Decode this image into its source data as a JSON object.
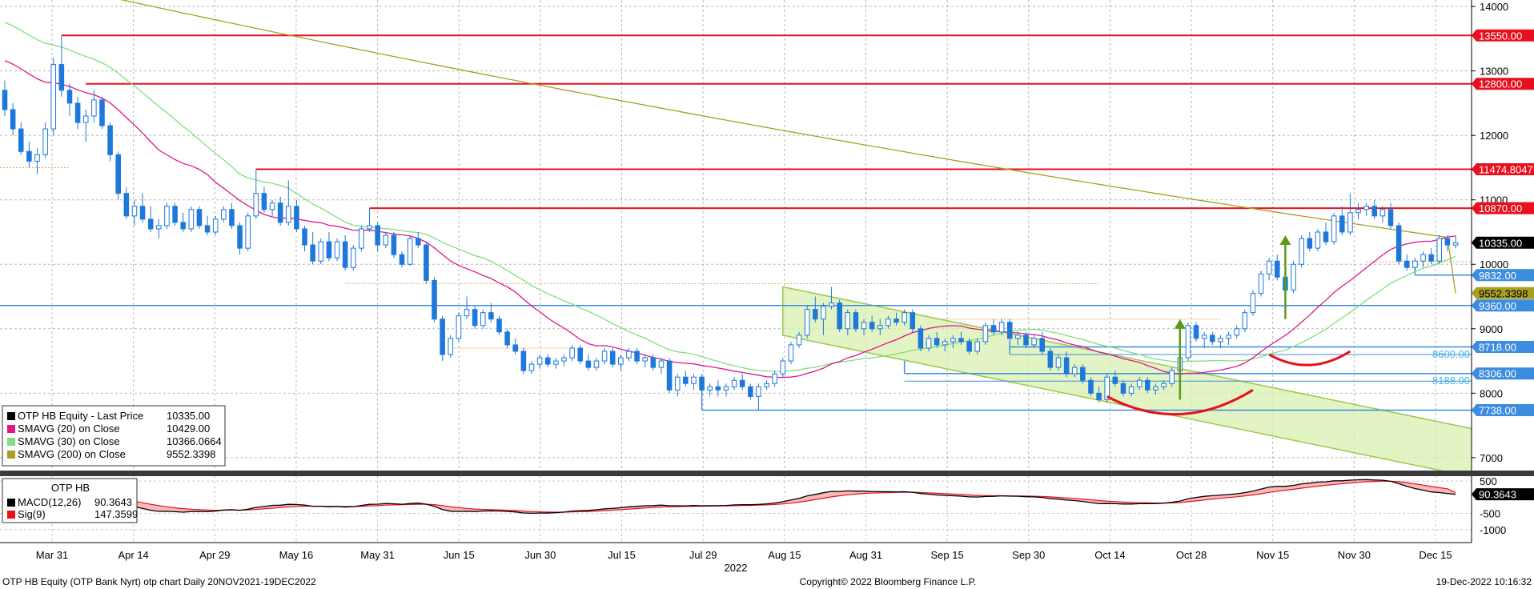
{
  "chart_data": [
    {
      "type": "candlestick",
      "ylim": [
        6800,
        14100
      ],
      "y_ticks": [
        7000,
        8000,
        9000,
        10000,
        11000,
        12000,
        13000,
        14000
      ],
      "x_ticks": [
        "Mar 31",
        "Apr 14",
        "Apr 29",
        "May 16",
        "May 31",
        "Jun 15",
        "Jun 30",
        "Jul 15",
        "Jul 29",
        "Aug 15",
        "Aug 31",
        "Sep 15",
        "Sep 30",
        "Oct 14",
        "Oct 28",
        "Nov 15",
        "Nov 30",
        "Dec 15"
      ],
      "year_label": "2022",
      "grid": true,
      "legend_position": "bottom-left",
      "legend": [
        {
          "label": "OTP HB Equity - Last Price",
          "value": "10335.00",
          "color": "#000000"
        },
        {
          "label": "SMAVG (20)  on Close",
          "value": "10429.00",
          "color": "#e0168c"
        },
        {
          "label": "SMAVG (30)  on Close",
          "value": "10366.0664",
          "color": "#7ee07e"
        },
        {
          "label": "SMAVG (200)  on Close",
          "value": "9552.3398",
          "color": "#a8a020"
        }
      ],
      "price_tags": [
        {
          "value": 13550,
          "label": "13550.00",
          "color": "#e8101e"
        },
        {
          "value": 12800,
          "label": "12800.00",
          "color": "#e8101e"
        },
        {
          "value": 11474.8047,
          "label": "11474.8047",
          "color": "#e8101e"
        },
        {
          "value": 10870,
          "label": "10870.00",
          "color": "#e8101e"
        },
        {
          "value": 10335,
          "label": "10335.00",
          "color": "#000000"
        },
        {
          "value": 9832,
          "label": "9832.00",
          "color": "#3c8ce0"
        },
        {
          "value": 9552.3398,
          "label": "9552.3398",
          "color": "#a8a020"
        },
        {
          "value": 9360,
          "label": "9360.00",
          "color": "#3c8ce0"
        },
        {
          "value": 8718,
          "label": "8718.00",
          "color": "#3c8ce0"
        },
        {
          "value": 8306,
          "label": "8306.00",
          "color": "#3c8ce0"
        },
        {
          "value": 7738,
          "label": "7738.00",
          "color": "#3c8ce0"
        }
      ],
      "inline_labels": [
        {
          "value": 8600,
          "label": "8600.00"
        },
        {
          "value": 8188,
          "label": "8188.00"
        }
      ],
      "ohlc": [
        [
          12700,
          12850,
          12300,
          12400
        ],
        [
          12400,
          12500,
          12000,
          12100
        ],
        [
          12100,
          12200,
          11700,
          11750
        ],
        [
          11750,
          11900,
          11500,
          11600
        ],
        [
          11600,
          11800,
          11400,
          11700
        ],
        [
          11700,
          12200,
          11650,
          12100
        ],
        [
          12100,
          13200,
          12000,
          13100
        ],
        [
          13100,
          13550,
          12600,
          12700
        ],
        [
          12700,
          12800,
          12300,
          12500
        ],
        [
          12500,
          12600,
          12100,
          12200
        ],
        [
          12200,
          12400,
          11900,
          12300
        ],
        [
          12300,
          12700,
          12200,
          12550
        ],
        [
          12550,
          12600,
          12100,
          12150
        ],
        [
          12150,
          12200,
          11600,
          11700
        ],
        [
          11700,
          11750,
          11000,
          11100
        ],
        [
          11100,
          11200,
          10700,
          10750
        ],
        [
          10750,
          11000,
          10600,
          10900
        ],
        [
          10900,
          11100,
          10650,
          10700
        ],
        [
          10700,
          10900,
          10500,
          10550
        ],
        [
          10550,
          10700,
          10400,
          10600
        ],
        [
          10600,
          10950,
          10550,
          10900
        ],
        [
          10900,
          10950,
          10600,
          10650
        ],
        [
          10650,
          10800,
          10500,
          10550
        ],
        [
          10550,
          10900,
          10500,
          10850
        ],
        [
          10850,
          10900,
          10550,
          10600
        ],
        [
          10600,
          10750,
          10450,
          10500
        ],
        [
          10500,
          10750,
          10450,
          10700
        ],
        [
          10700,
          10900,
          10650,
          10850
        ],
        [
          10850,
          10950,
          10550,
          10600
        ],
        [
          10600,
          10650,
          10150,
          10250
        ],
        [
          10250,
          10800,
          10200,
          10750
        ],
        [
          10750,
          11474,
          10700,
          11100
        ],
        [
          11100,
          11200,
          10800,
          10850
        ],
        [
          10850,
          11000,
          10750,
          10950
        ],
        [
          10950,
          11050,
          10600,
          10650
        ],
        [
          10650,
          11300,
          10600,
          10900
        ],
        [
          10900,
          11000,
          10500,
          10550
        ],
        [
          10550,
          10600,
          10200,
          10300
        ],
        [
          10300,
          10500,
          10000,
          10050
        ],
        [
          10050,
          10400,
          10000,
          10350
        ],
        [
          10350,
          10500,
          10050,
          10100
        ],
        [
          10100,
          10400,
          10050,
          10350
        ],
        [
          10350,
          10450,
          9900,
          9950
        ],
        [
          9950,
          10300,
          9900,
          10250
        ],
        [
          10250,
          10600,
          10200,
          10550
        ],
        [
          10550,
          10870,
          10500,
          10600
        ],
        [
          10600,
          10650,
          10200,
          10300
        ],
        [
          10300,
          10500,
          10250,
          10450
        ],
        [
          10450,
          10500,
          10100,
          10150
        ],
        [
          10150,
          10200,
          9950,
          10000
        ],
        [
          10000,
          10450,
          9980,
          10400
        ],
        [
          10400,
          10500,
          10250,
          10300
        ],
        [
          10300,
          10350,
          9700,
          9750
        ],
        [
          9750,
          9800,
          9100,
          9150
        ],
        [
          9150,
          9200,
          8500,
          8600
        ],
        [
          8600,
          8900,
          8550,
          8850
        ],
        [
          8850,
          9250,
          8800,
          9200
        ],
        [
          9200,
          9500,
          9150,
          9300
        ],
        [
          9300,
          9350,
          9000,
          9050
        ],
        [
          9050,
          9300,
          9000,
          9250
        ],
        [
          9250,
          9400,
          9100,
          9150
        ],
        [
          9150,
          9200,
          8900,
          8950
        ],
        [
          8950,
          9000,
          8700,
          8750
        ],
        [
          8750,
          8850,
          8600,
          8650
        ],
        [
          8650,
          8700,
          8300,
          8350
        ],
        [
          8350,
          8500,
          8300,
          8450
        ],
        [
          8450,
          8600,
          8380,
          8550
        ],
        [
          8550,
          8600,
          8400,
          8450
        ],
        [
          8450,
          8550,
          8380,
          8500
        ],
        [
          8500,
          8600,
          8420,
          8550
        ],
        [
          8550,
          8750,
          8500,
          8700
        ],
        [
          8700,
          8750,
          8450,
          8500
        ],
        [
          8500,
          8600,
          8350,
          8400
        ],
        [
          8400,
          8550,
          8350,
          8500
        ],
        [
          8500,
          8700,
          8450,
          8650
        ],
        [
          8650,
          8700,
          8400,
          8450
        ],
        [
          8450,
          8600,
          8350,
          8550
        ],
        [
          8550,
          8700,
          8500,
          8650
        ],
        [
          8650,
          8700,
          8450,
          8500
        ],
        [
          8500,
          8600,
          8400,
          8550
        ],
        [
          8550,
          8600,
          8350,
          8400
        ],
        [
          8400,
          8550,
          8300,
          8500
        ],
        [
          8500,
          8550,
          8000,
          8050
        ],
        [
          8050,
          8300,
          7950,
          8250
        ],
        [
          8250,
          8350,
          8100,
          8150
        ],
        [
          8150,
          8300,
          8050,
          8250
        ],
        [
          8250,
          8300,
          8000,
          8050
        ],
        [
          8050,
          8150,
          7950,
          8100
        ],
        [
          8100,
          8200,
          7950,
          8050
        ],
        [
          8050,
          8150,
          7950,
          8100
        ],
        [
          8100,
          8250,
          8050,
          8200
        ],
        [
          8200,
          8300,
          8050,
          8100
        ],
        [
          8100,
          8150,
          7900,
          7950
        ],
        [
          7950,
          8150,
          7738,
          8100
        ],
        [
          8100,
          8200,
          8050,
          8150
        ],
        [
          8150,
          8350,
          8100,
          8300
        ],
        [
          8300,
          8550,
          8250,
          8500
        ],
        [
          8500,
          8800,
          8450,
          8750
        ],
        [
          8750,
          8950,
          8700,
          8900
        ],
        [
          8900,
          9350,
          8850,
          9300
        ],
        [
          9300,
          9500,
          9100,
          9150
        ],
        [
          9150,
          9400,
          8900,
          9350
        ],
        [
          9350,
          9650,
          9300,
          9400
        ],
        [
          9400,
          9450,
          8950,
          9000
        ],
        [
          9000,
          9300,
          8900,
          9250
        ],
        [
          9250,
          9300,
          8950,
          9000
        ],
        [
          9000,
          9150,
          8900,
          9100
        ],
        [
          9100,
          9200,
          8950,
          9000
        ],
        [
          9000,
          9150,
          8900,
          9050
        ],
        [
          9050,
          9200,
          9000,
          9150
        ],
        [
          9150,
          9250,
          9050,
          9100
        ],
        [
          9100,
          9300,
          9050,
          9250
        ],
        [
          9250,
          9300,
          8950,
          9000
        ],
        [
          9000,
          9050,
          8650,
          8700
        ],
        [
          8700,
          8900,
          8650,
          8850
        ],
        [
          8850,
          8950,
          8700,
          8750
        ],
        [
          8750,
          8850,
          8650,
          8800
        ],
        [
          8800,
          8900,
          8700,
          8850
        ],
        [
          8850,
          8950,
          8750,
          8800
        ],
        [
          8800,
          8850,
          8600,
          8650
        ],
        [
          8650,
          8850,
          8600,
          8800
        ],
        [
          8800,
          9100,
          8750,
          9050
        ],
        [
          9050,
          9150,
          8900,
          8950
        ],
        [
          8950,
          9150,
          8900,
          9100
        ],
        [
          9100,
          9150,
          8800,
          8850
        ],
        [
          8850,
          8950,
          8750,
          8900
        ],
        [
          8900,
          8950,
          8700,
          8750
        ],
        [
          8750,
          8900,
          8700,
          8850
        ],
        [
          8850,
          8950,
          8600,
          8650
        ],
        [
          8650,
          8700,
          8350,
          8400
        ],
        [
          8400,
          8600,
          8350,
          8550
        ],
        [
          8550,
          8650,
          8250,
          8300
        ],
        [
          8300,
          8450,
          8250,
          8400
        ],
        [
          8400,
          8450,
          8150,
          8200
        ],
        [
          8200,
          8250,
          7950,
          8000
        ],
        [
          8000,
          8100,
          7850,
          7900
        ],
        [
          7900,
          8300,
          7850,
          8250
        ],
        [
          8250,
          8350,
          8100,
          8150
        ],
        [
          8150,
          8200,
          7950,
          8000
        ],
        [
          8000,
          8150,
          7950,
          8100
        ],
        [
          8100,
          8250,
          8050,
          8200
        ],
        [
          8200,
          8250,
          8000,
          8050
        ],
        [
          8050,
          8150,
          7980,
          8100
        ],
        [
          8100,
          8200,
          8050,
          8150
        ],
        [
          8150,
          8400,
          8100,
          8350
        ],
        [
          8350,
          8600,
          8300,
          8550
        ],
        [
          8550,
          9100,
          8500,
          9050
        ],
        [
          9050,
          9100,
          8800,
          8850
        ],
        [
          8850,
          8950,
          8700,
          8900
        ],
        [
          8900,
          8950,
          8750,
          8800
        ],
        [
          8800,
          8900,
          8700,
          8850
        ],
        [
          8850,
          8950,
          8750,
          8900
        ],
        [
          8900,
          9050,
          8850,
          9000
        ],
        [
          9000,
          9300,
          8950,
          9250
        ],
        [
          9250,
          9600,
          9200,
          9550
        ],
        [
          9550,
          9900,
          9500,
          9850
        ],
        [
          9850,
          10100,
          9750,
          10050
        ],
        [
          10050,
          10150,
          9750,
          9800
        ],
        [
          9800,
          9900,
          9550,
          9600
        ],
        [
          9600,
          10050,
          9550,
          10000
        ],
        [
          10000,
          10450,
          9950,
          10400
        ],
        [
          10400,
          10500,
          10200,
          10250
        ],
        [
          10250,
          10550,
          10200,
          10500
        ],
        [
          10500,
          10650,
          10300,
          10350
        ],
        [
          10350,
          10800,
          10300,
          10750
        ],
        [
          10750,
          10900,
          10450,
          10500
        ],
        [
          10500,
          11100,
          10450,
          10800
        ],
        [
          10800,
          10950,
          10700,
          10850
        ],
        [
          10850,
          10950,
          10750,
          10900
        ],
        [
          10900,
          11000,
          10700,
          10750
        ],
        [
          10750,
          10900,
          10650,
          10850
        ],
        [
          10850,
          10950,
          10550,
          10600
        ],
        [
          10600,
          10650,
          10000,
          10050
        ],
        [
          10050,
          10150,
          9900,
          9950
        ],
        [
          9950,
          10100,
          9900,
          10050
        ],
        [
          10050,
          10200,
          9950,
          10150
        ],
        [
          10150,
          10250,
          10000,
          10050
        ],
        [
          10050,
          10450,
          10000,
          10400
        ],
        [
          10400,
          10450,
          10200,
          10300
        ],
        [
          10300,
          10450,
          10250,
          10335
        ]
      ]
    },
    {
      "type": "line",
      "title": "OTP HB",
      "ylim": [
        -1400,
        650
      ],
      "y_ticks": [
        -1000,
        -500,
        500
      ],
      "y_tick_labels": [
        "-1000",
        "-500",
        "500"
      ],
      "legend": [
        {
          "label": "MACD(12,26)",
          "value": "90.3643",
          "color": "#000000"
        },
        {
          "label": "Sig(9)",
          "value": "147.3599",
          "color": "#e8101e"
        }
      ],
      "price_tags": [
        {
          "value": 90.3643,
          "label": "90.3643",
          "color": "#000000"
        }
      ]
    }
  ],
  "footer": {
    "left": "OTP HB Equity (OTP Bank Nyrt) otp chart  Daily 20NOV2021-19DEC2022",
    "center": "Copyright© 2022 Bloomberg Finance L.P.",
    "right": "19-Dec-2022 10:16:32"
  }
}
